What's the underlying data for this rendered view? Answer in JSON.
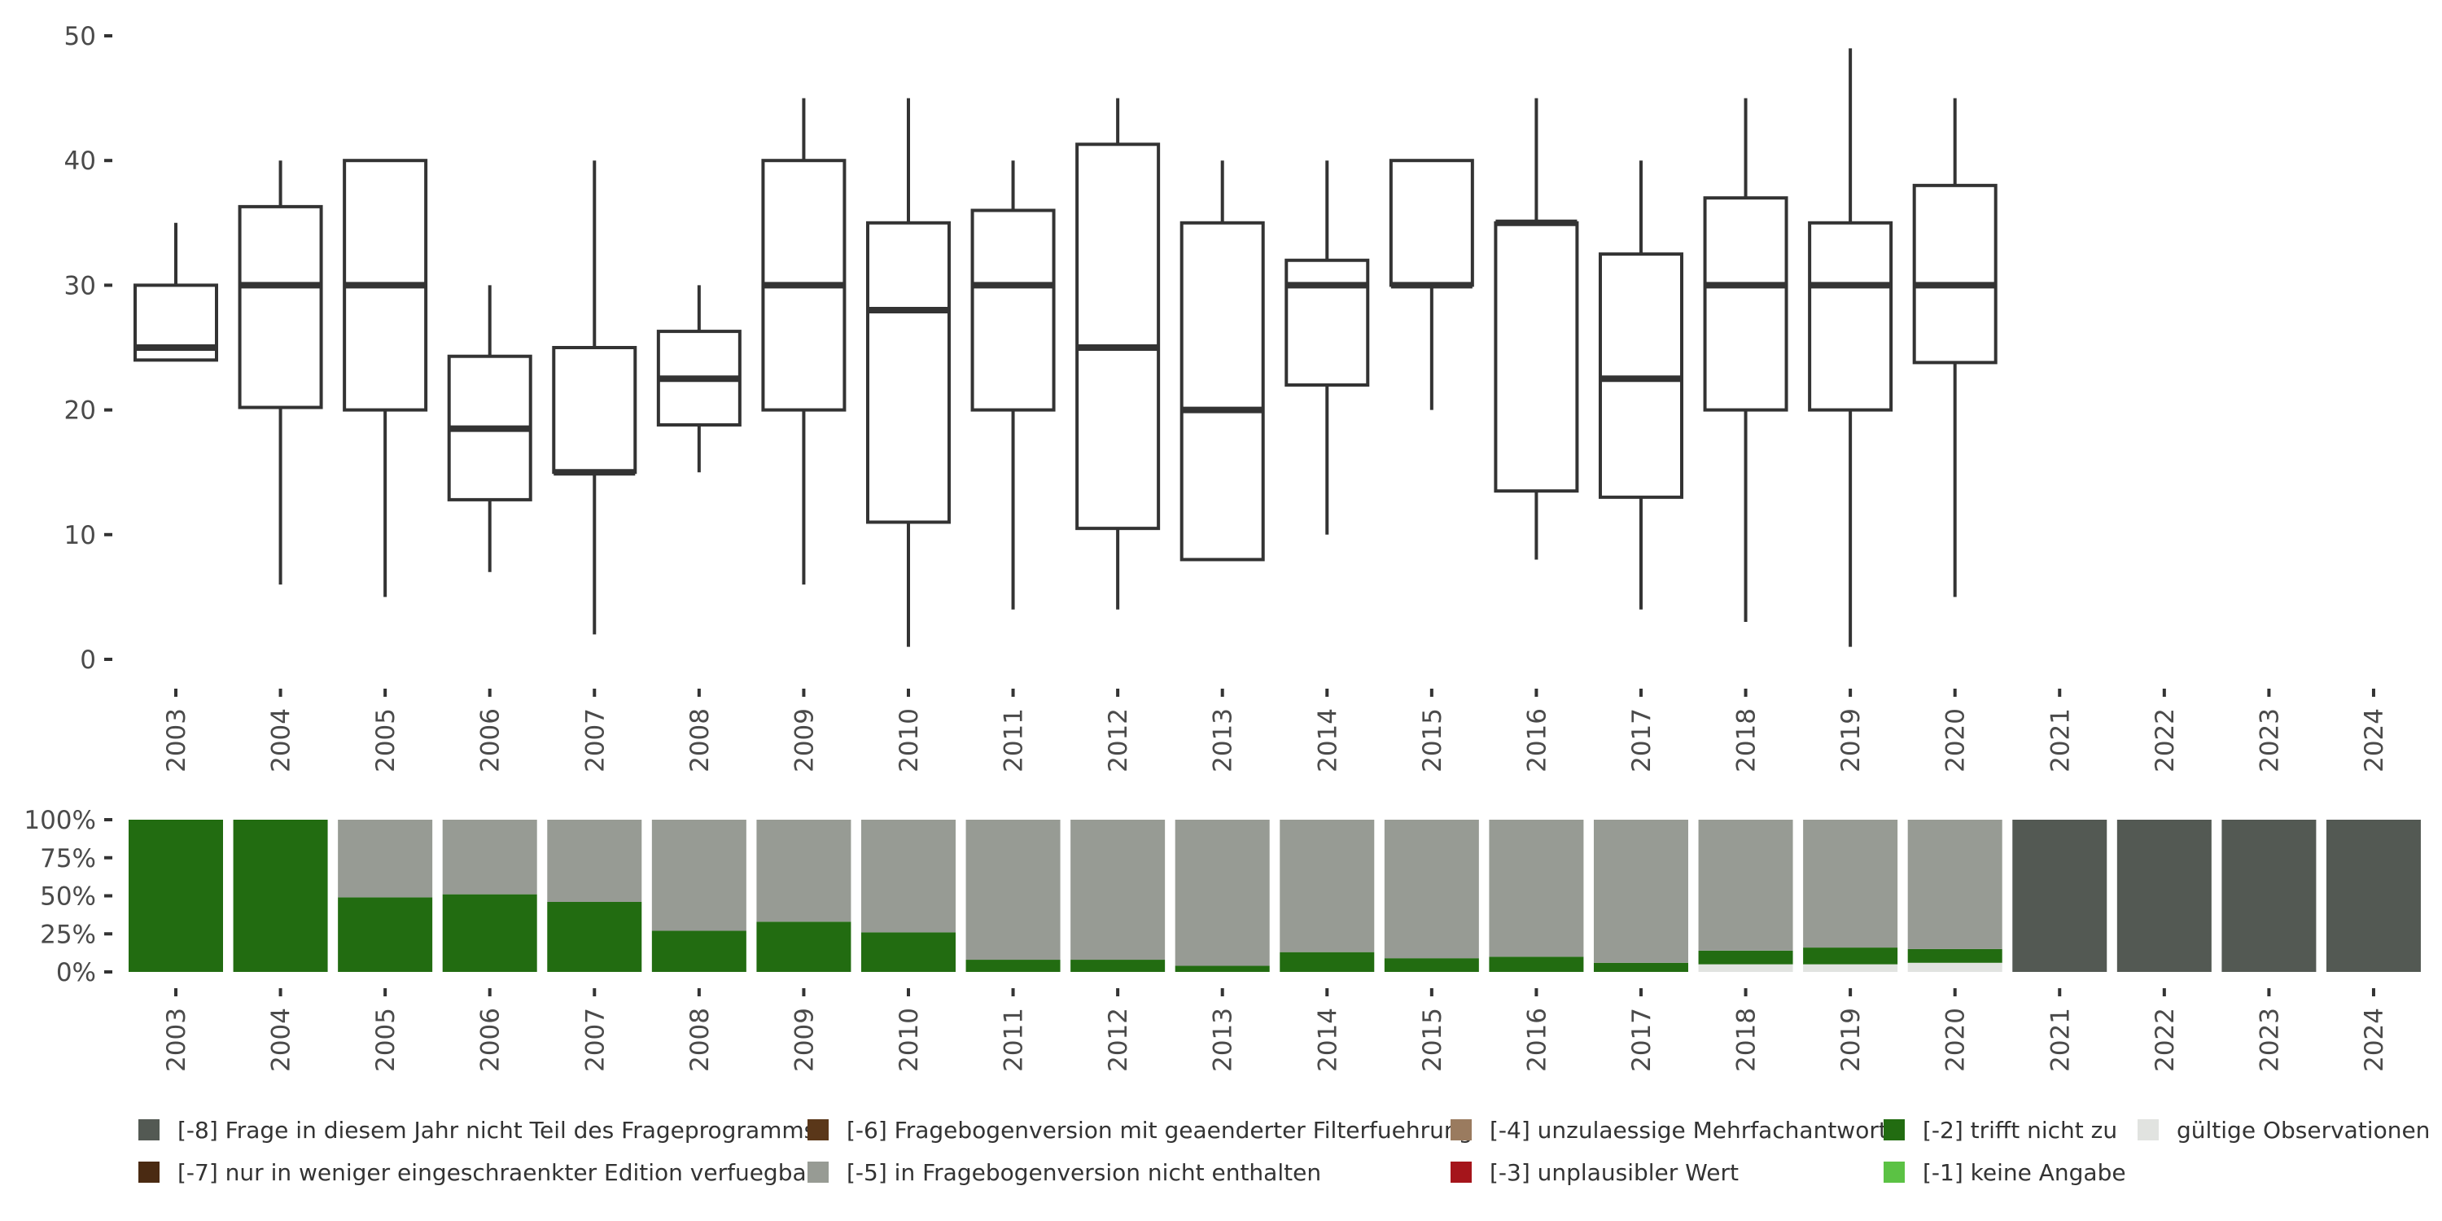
{
  "chart_data": [
    {
      "type": "boxplot",
      "title": "",
      "xlabel": "",
      "ylabel": "",
      "ylim": [
        0,
        50
      ],
      "yticks": [
        0,
        10,
        20,
        30,
        40,
        50
      ],
      "categories": [
        "2003",
        "2004",
        "2005",
        "2006",
        "2007",
        "2008",
        "2009",
        "2010",
        "2011",
        "2012",
        "2013",
        "2014",
        "2015",
        "2016",
        "2017",
        "2018",
        "2019",
        "2020",
        "2021",
        "2022",
        "2023",
        "2024"
      ],
      "boxes": [
        {
          "year": "2003",
          "whisker_low": 24,
          "q1": 24,
          "median": 25,
          "q3": 30,
          "whisker_high": 35
        },
        {
          "year": "2004",
          "whisker_low": 6,
          "q1": 20.2,
          "median": 30,
          "q3": 36.3,
          "whisker_high": 40
        },
        {
          "year": "2005",
          "whisker_low": 5,
          "q1": 20,
          "median": 30,
          "q3": 40,
          "whisker_high": 40
        },
        {
          "year": "2006",
          "whisker_low": 7,
          "q1": 12.8,
          "median": 18.5,
          "q3": 24.3,
          "whisker_high": 30
        },
        {
          "year": "2007",
          "whisker_low": 2,
          "q1": 15,
          "median": 15,
          "q3": 25,
          "whisker_high": 40
        },
        {
          "year": "2008",
          "whisker_low": 15,
          "q1": 18.8,
          "median": 22.5,
          "q3": 26.3,
          "whisker_high": 30
        },
        {
          "year": "2009",
          "whisker_low": 6,
          "q1": 20,
          "median": 30,
          "q3": 40,
          "whisker_high": 45
        },
        {
          "year": "2010",
          "whisker_low": 1,
          "q1": 11,
          "median": 28,
          "q3": 35,
          "whisker_high": 45
        },
        {
          "year": "2011",
          "whisker_low": 4,
          "q1": 20,
          "median": 30,
          "q3": 36,
          "whisker_high": 40
        },
        {
          "year": "2012",
          "whisker_low": 4,
          "q1": 10.5,
          "median": 25,
          "q3": 41.3,
          "whisker_high": 45
        },
        {
          "year": "2013",
          "whisker_low": 8,
          "q1": 8,
          "median": 20,
          "q3": 35,
          "whisker_high": 40
        },
        {
          "year": "2014",
          "whisker_low": 10,
          "q1": 22,
          "median": 30,
          "q3": 32,
          "whisker_high": 40
        },
        {
          "year": "2015",
          "whisker_low": 20,
          "q1": 30,
          "median": 30,
          "q3": 40,
          "whisker_high": 40
        },
        {
          "year": "2016",
          "whisker_low": 8,
          "q1": 13.5,
          "median": 35,
          "q3": 35,
          "whisker_high": 45
        },
        {
          "year": "2017",
          "whisker_low": 4,
          "q1": 13,
          "median": 22.5,
          "q3": 32.5,
          "whisker_high": 40
        },
        {
          "year": "2018",
          "whisker_low": 3,
          "q1": 20,
          "median": 30,
          "q3": 37,
          "whisker_high": 45
        },
        {
          "year": "2019",
          "whisker_low": 1,
          "q1": 20,
          "median": 30,
          "q3": 35,
          "whisker_high": 49
        },
        {
          "year": "2020",
          "whisker_low": 5,
          "q1": 23.8,
          "median": 30,
          "q3": 38,
          "whisker_high": 45
        }
      ]
    },
    {
      "type": "bar",
      "stacked": true,
      "ylim": [
        0,
        1
      ],
      "yticks": [
        "0%",
        "25%",
        "50%",
        "75%",
        "100%"
      ],
      "categories": [
        "2003",
        "2004",
        "2005",
        "2006",
        "2007",
        "2008",
        "2009",
        "2010",
        "2011",
        "2012",
        "2013",
        "2014",
        "2015",
        "2016",
        "2017",
        "2018",
        "2019",
        "2020",
        "2021",
        "2022",
        "2023",
        "2024"
      ],
      "series": [
        {
          "name": "gültige Observationen",
          "color": "#e1e3e0",
          "values": [
            0,
            0,
            0,
            0,
            0,
            0,
            0,
            0,
            0,
            0,
            0,
            0,
            0,
            0,
            0,
            0.05,
            0.05,
            0.06,
            0,
            0,
            0,
            0
          ]
        },
        {
          "name": "[-2] trifft nicht zu",
          "color": "#226c11",
          "values": [
            1,
            1,
            0.49,
            0.51,
            0.46,
            0.27,
            0.33,
            0.26,
            0.08,
            0.08,
            0.04,
            0.13,
            0.09,
            0.1,
            0.06,
            0.09,
            0.11,
            0.09,
            0,
            0,
            0,
            0
          ]
        },
        {
          "name": "[-5] in Fragebogenversion nicht enthalten",
          "color": "#979b94",
          "values": [
            0,
            0,
            0.51,
            0.49,
            0.54,
            0.73,
            0.67,
            0.74,
            0.92,
            0.92,
            0.96,
            0.87,
            0.91,
            0.9,
            0.94,
            0.86,
            0.84,
            0.85,
            0,
            0,
            0,
            0
          ]
        },
        {
          "name": "[-8] Frage in diesem Jahr nicht Teil des Frageprogramms",
          "color": "#535953",
          "values": [
            0,
            0,
            0,
            0,
            0,
            0,
            0,
            0,
            0,
            0,
            0,
            0,
            0,
            0,
            0,
            0,
            0,
            0,
            1,
            1,
            1,
            1
          ]
        }
      ]
    }
  ],
  "legend": [
    {
      "label": "[-8] Frage in diesem Jahr nicht Teil des Frageprogramms",
      "color": "#535953"
    },
    {
      "label": "[-7] nur in weniger eingeschraenkter Edition verfuegbar",
      "color": "#4a2a12"
    },
    {
      "label": "[-6] Fragebogenversion mit geaenderter Filterfuehrung",
      "color": "#5a3719"
    },
    {
      "label": "[-5] in Fragebogenversion nicht enthalten",
      "color": "#979b94"
    },
    {
      "label": "[-4] unzulaessige Mehrfachantwort",
      "color": "#9a7b5f"
    },
    {
      "label": "[-3] unplausibler Wert",
      "color": "#a5151b"
    },
    {
      "label": "[-2] trifft nicht zu",
      "color": "#226c11"
    },
    {
      "label": "[-1] keine Angabe",
      "color": "#5bc244"
    },
    {
      "label": "gültige Observationen",
      "color": "#e1e3e0"
    }
  ],
  "colors": {
    "box_stroke": "#333333",
    "axis_text": "#4a4a4a"
  }
}
